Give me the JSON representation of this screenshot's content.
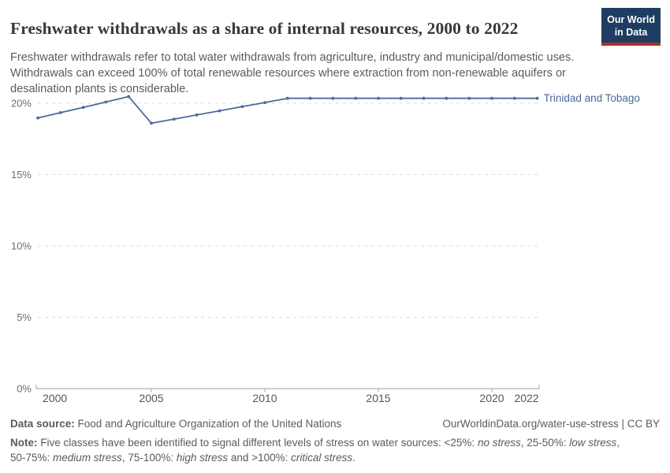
{
  "header": {
    "title": "Freshwater withdrawals as a share of internal resources, 2000 to 2022",
    "subtitle": "Freshwater withdrawals refer to total water withdrawals from agriculture, industry and municipal/domestic uses. Withdrawals can exceed 100% of total renewable resources where extraction from non-renewable aquifers or desalination plants is considerable.",
    "logo": {
      "line1": "Our World",
      "line2": "in Data",
      "bg_color": "#1d3d63",
      "accent_color": "#a8322b"
    }
  },
  "chart_data": {
    "type": "line",
    "title": "Freshwater withdrawals as a share of internal resources, 2000 to 2022",
    "x": [
      2000,
      2001,
      2002,
      2003,
      2004,
      2005,
      2006,
      2007,
      2008,
      2009,
      2010,
      2011,
      2012,
      2013,
      2014,
      2015,
      2016,
      2017,
      2018,
      2019,
      2020,
      2021,
      2022
    ],
    "series": [
      {
        "name": "Trinidad and Tobago",
        "color": "#4c6a9c",
        "values": [
          18.97,
          19.34,
          19.71,
          20.09,
          20.47,
          18.6,
          18.89,
          19.18,
          19.47,
          19.76,
          20.05,
          20.35,
          20.35,
          20.35,
          20.35,
          20.35,
          20.35,
          20.35,
          20.35,
          20.35,
          20.35,
          20.35,
          20.35
        ]
      }
    ],
    "xlabel": "",
    "ylabel": "",
    "x_ticks": [
      2000,
      2005,
      2010,
      2015,
      2020,
      2022
    ],
    "y_ticks": [
      0,
      5,
      10,
      15,
      20
    ],
    "y_tick_suffix": "%",
    "xlim": [
      2000,
      2022
    ],
    "ylim": [
      0,
      21.3
    ],
    "grid": "horizontal-dashed",
    "legend_position": "right-of-line",
    "colors": {
      "grid": "#dcdcdc",
      "axis": "#a1a1a1",
      "x_tick_label": "#565656",
      "y_tick_label": "#6e6e6e"
    }
  },
  "footer": {
    "datasource_parts": [
      {
        "text": "Data source: ",
        "bold": true
      },
      {
        "text": "Food and Agriculture Organization of the United Nations"
      }
    ],
    "url_text": "OurWorldinData.org/water-use-stress | CC BY",
    "note_parts": [
      {
        "text": "Note: ",
        "bold": true
      },
      {
        "text": "Five classes have been identified to signal different levels of stress on water sources: <25%: "
      },
      {
        "text": "no stress",
        "italic": true
      },
      {
        "text": ", 25-50%: "
      },
      {
        "text": "low stress",
        "italic": true
      },
      {
        "text": ", 50-75%: "
      },
      {
        "text": "medium stress",
        "italic": true
      },
      {
        "text": ", 75-100%: "
      },
      {
        "text": "high stress",
        "italic": true
      },
      {
        "text": " and >100%: "
      },
      {
        "text": "critical stress",
        "italic": true
      },
      {
        "text": "."
      }
    ]
  }
}
